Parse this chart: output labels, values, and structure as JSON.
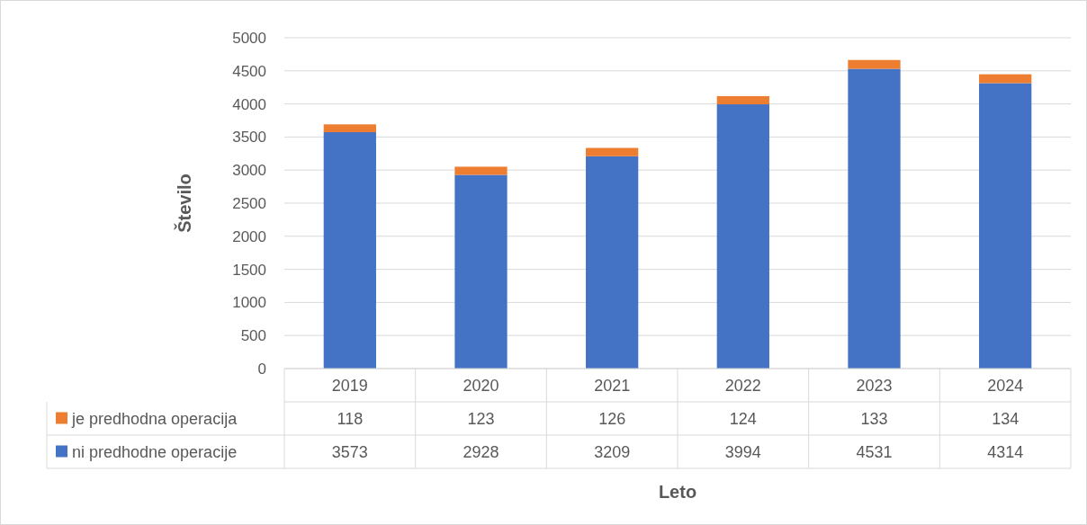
{
  "chart_data": {
    "type": "bar",
    "stacked": true,
    "xlabel": "Leto",
    "ylabel": "Število",
    "categories": [
      "2019",
      "2020",
      "2021",
      "2022",
      "2023",
      "2024"
    ],
    "series": [
      {
        "name": "ni predhodne operacije",
        "color": "#4472c4",
        "values": [
          3573,
          2928,
          3209,
          3994,
          4531,
          4314
        ]
      },
      {
        "name": "je predhodna operacija",
        "color": "#ed7d31",
        "values": [
          118,
          123,
          126,
          124,
          133,
          134
        ]
      }
    ],
    "ylim": [
      0,
      5000
    ],
    "yticks": [
      0,
      500,
      1000,
      1500,
      2000,
      2500,
      3000,
      3500,
      4000,
      4500,
      5000
    ],
    "grid": "y",
    "data_labels": true,
    "legend": "bottom"
  }
}
